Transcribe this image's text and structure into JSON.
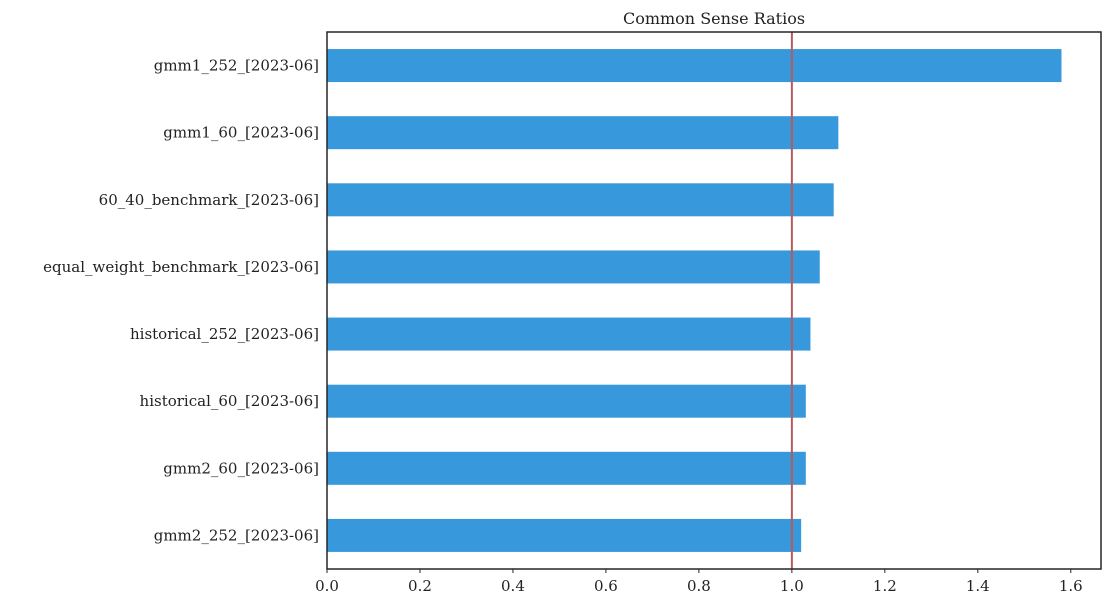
{
  "chart_data": {
    "type": "bar",
    "orientation": "horizontal",
    "title": "Common Sense Ratios",
    "xlabel": "",
    "ylabel": "",
    "categories": [
      "gmm1_252_[2023-06]",
      "gmm1_60_[2023-06]",
      "60_40_benchmark_[2023-06]",
      "equal_weight_benchmark_[2023-06]",
      "historical_252_[2023-06]",
      "historical_60_[2023-06]",
      "gmm2_60_[2023-06]",
      "gmm2_252_[2023-06]"
    ],
    "values": [
      1.58,
      1.1,
      1.09,
      1.06,
      1.04,
      1.03,
      1.03,
      1.02
    ],
    "xlim": [
      0.0,
      1.665
    ],
    "xticks": [
      "0.0",
      "0.2",
      "0.4",
      "0.6",
      "0.8",
      "1.0",
      "1.2",
      "1.4",
      "1.6"
    ],
    "reference_line": 1.0,
    "grid": false,
    "colors": {
      "bar": "#3799db",
      "reference_line": "#b55a5e",
      "frame": "#262626",
      "text": "#222222"
    }
  }
}
